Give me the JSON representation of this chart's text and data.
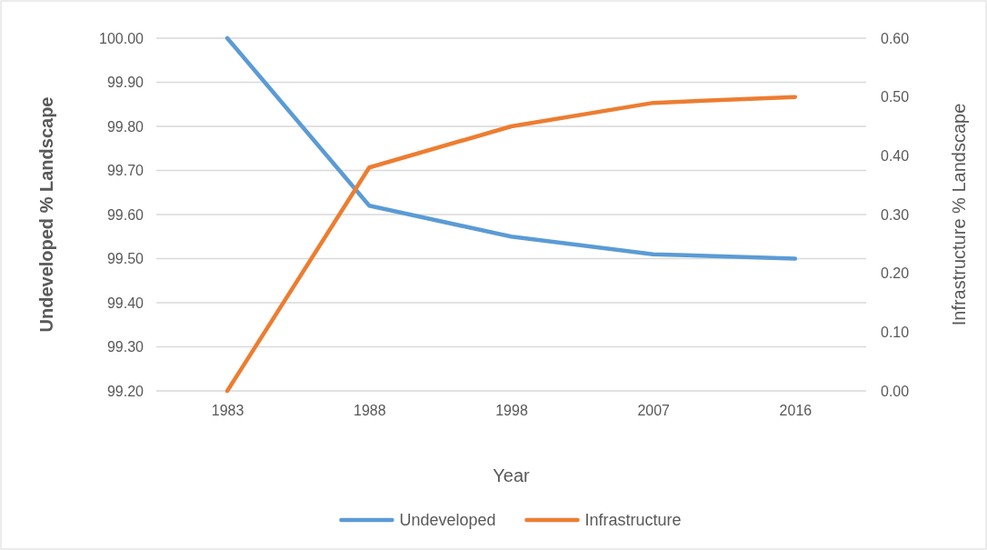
{
  "chart_data": {
    "type": "line",
    "xlabel": "Year",
    "ylabel": "Undeveloped % Landscape",
    "y2label": "Infrastructure % Landscape",
    "categories": [
      "1983",
      "1988",
      "1998",
      "2007",
      "2016"
    ],
    "series": [
      {
        "name": "Undeveloped",
        "color": "#5b9bd5",
        "values": [
          100.0,
          99.62,
          99.55,
          99.51,
          99.5
        ]
      },
      {
        "name": "Infrastructure",
        "color": "#ed7d31",
        "axis": "y2",
        "values": [
          0.0,
          0.38,
          0.45,
          0.49,
          0.5
        ]
      }
    ],
    "ylim": [
      99.2,
      100
    ],
    "yticks": [
      {
        "value": 99.2,
        "label": "99.20"
      },
      {
        "value": 99.3,
        "label": "99.30"
      },
      {
        "value": 99.4,
        "label": "99.40"
      },
      {
        "value": 99.5,
        "label": "99.50"
      },
      {
        "value": 99.6,
        "label": "99.60"
      },
      {
        "value": 99.7,
        "label": "99.70"
      },
      {
        "value": 99.8,
        "label": "99.80"
      },
      {
        "value": 99.9,
        "label": "99.90"
      },
      {
        "value": 100,
        "label": "100.00"
      }
    ],
    "y2lim": [
      0,
      0.6
    ],
    "y2ticks": [
      {
        "value": 0,
        "label": "0.00"
      },
      {
        "value": 0.1,
        "label": "0.10"
      },
      {
        "value": 0.2,
        "label": "0.20"
      },
      {
        "value": 0.3,
        "label": "0.30"
      },
      {
        "value": 0.4,
        "label": "0.40"
      },
      {
        "value": 0.5,
        "label": "0.50"
      },
      {
        "value": 0.6,
        "label": "0.60"
      }
    ],
    "grid": "y",
    "legend": "bottom",
    "marker": "none",
    "line_style": "solid"
  }
}
